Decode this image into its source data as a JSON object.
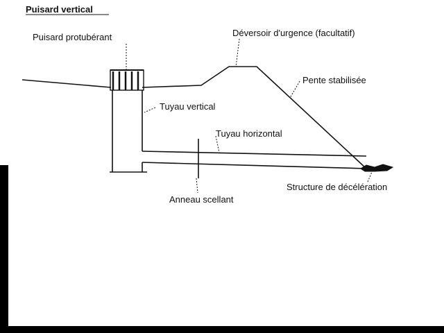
{
  "title": "Puisard vertical",
  "labels": {
    "puisard_protuberant": "Puisard protubérant",
    "deversoir": "Déversoir d'urgence (facultatif)",
    "pente": "Pente stabilisée",
    "tuyau_vertical": "Tuyau vertical",
    "tuyau_horizontal": "Tuyau horizontal",
    "structure": "Structure de décélération",
    "anneau": "Anneau scellant"
  },
  "colors": {
    "background": "#000000",
    "paper": "#ffffff",
    "ink": "#111111"
  }
}
